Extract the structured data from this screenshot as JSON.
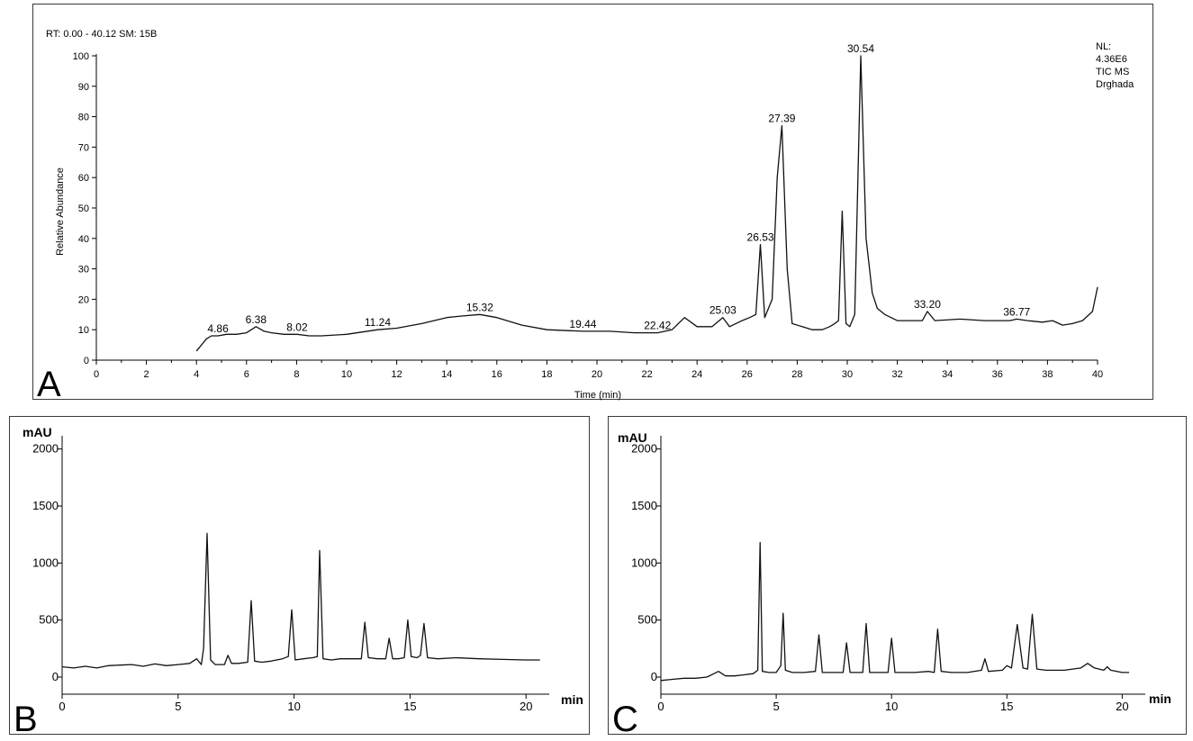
{
  "chart_data": [
    {
      "panel": "A",
      "type": "line",
      "header": "RT: 0.00 - 40.12  SM: 15B",
      "info_lines": [
        "NL:",
        "4.36E6",
        "TIC  MS",
        "Drghada"
      ],
      "xlabel": "Time (min)",
      "ylabel": "Relative Abundance",
      "xlim": [
        0,
        40
      ],
      "ylim": [
        0,
        100
      ],
      "x_ticks": [
        0,
        2,
        4,
        6,
        8,
        10,
        12,
        14,
        16,
        18,
        20,
        22,
        24,
        26,
        28,
        30,
        32,
        34,
        36,
        38,
        40
      ],
      "y_ticks": [
        0,
        10,
        20,
        30,
        40,
        50,
        60,
        70,
        80,
        90,
        100
      ],
      "series": [
        {
          "x": [
            4.0,
            4.2,
            4.4,
            4.6,
            4.86,
            5.2,
            5.6,
            6.0,
            6.38,
            6.7,
            7.0,
            7.5,
            8.02,
            8.5,
            9.0,
            10.0,
            11.24,
            12.0,
            13.0,
            14.0,
            14.6,
            15.32,
            16.0,
            17.0,
            18.0,
            19.44,
            20.5,
            21.5,
            22.42,
            23.0,
            23.5,
            24.0,
            24.6,
            25.03,
            25.3,
            25.8,
            26.1,
            26.35,
            26.53,
            26.7,
            27.0,
            27.2,
            27.39,
            27.6,
            27.8,
            28.2,
            28.6,
            29.0,
            29.3,
            29.5,
            29.65,
            29.8,
            29.95,
            30.1,
            30.3,
            30.54,
            30.75,
            31.0,
            31.2,
            31.5,
            32.0,
            32.5,
            33.0,
            33.2,
            33.5,
            34.5,
            35.5,
            36.5,
            36.77,
            37.2,
            37.8,
            38.2,
            38.6,
            39.0,
            39.4,
            39.8,
            40.0
          ],
          "y": [
            3,
            5,
            7,
            8,
            8,
            8.5,
            8.5,
            9,
            11,
            9.5,
            9,
            8.5,
            8.5,
            8,
            8,
            8.5,
            10,
            10.5,
            12,
            14,
            14.5,
            15,
            14,
            11.5,
            10,
            9.5,
            9.5,
            9,
            9,
            10,
            14,
            11,
            11,
            14,
            11,
            13,
            14,
            15,
            38,
            14,
            20,
            60,
            77,
            30,
            12,
            11,
            10,
            10,
            11,
            12,
            13,
            49,
            12,
            11,
            15,
            100,
            40,
            22,
            17,
            15,
            13,
            13,
            13,
            16,
            13,
            13.5,
            13,
            13,
            13.5,
            13,
            12.5,
            13,
            11.5,
            12,
            13,
            16,
            24
          ]
        }
      ],
      "peak_labels": [
        {
          "x": 4.86,
          "y": 8,
          "text": "4.86"
        },
        {
          "x": 6.38,
          "y": 11,
          "text": "6.38"
        },
        {
          "x": 8.02,
          "y": 8.5,
          "text": "8.02"
        },
        {
          "x": 11.24,
          "y": 10,
          "text": "11.24"
        },
        {
          "x": 15.32,
          "y": 15,
          "text": "15.32"
        },
        {
          "x": 19.44,
          "y": 9.5,
          "text": "19.44"
        },
        {
          "x": 22.42,
          "y": 9,
          "text": "22.42"
        },
        {
          "x": 25.03,
          "y": 14,
          "text": "25.03"
        },
        {
          "x": 26.53,
          "y": 38,
          "text": "26.53"
        },
        {
          "x": 27.39,
          "y": 77,
          "text": "27.39"
        },
        {
          "x": 30.54,
          "y": 100,
          "text": "30.54"
        },
        {
          "x": 33.2,
          "y": 16,
          "text": "33.20"
        },
        {
          "x": 36.77,
          "y": 13.5,
          "text": "36.77"
        }
      ]
    },
    {
      "panel": "B",
      "type": "line",
      "ylabel": "mAU",
      "xlabel": "min",
      "xlim": [
        0,
        21
      ],
      "ylim": [
        -150,
        2100
      ],
      "x_ticks": [
        0,
        5,
        10,
        15,
        20
      ],
      "y_ticks": [
        0,
        500,
        1000,
        1500,
        2000
      ],
      "series": [
        {
          "x": [
            0.0,
            0.5,
            1.0,
            1.5,
            2.0,
            2.5,
            3.0,
            3.5,
            4.0,
            4.5,
            5.0,
            5.5,
            5.8,
            6.0,
            6.1,
            6.25,
            6.4,
            6.6,
            7.0,
            7.15,
            7.3,
            7.6,
            8.0,
            8.15,
            8.3,
            8.6,
            9.0,
            9.5,
            9.75,
            9.9,
            10.05,
            10.4,
            10.8,
            11.0,
            11.1,
            11.25,
            11.6,
            12.0,
            12.5,
            12.9,
            13.05,
            13.2,
            13.6,
            13.95,
            14.1,
            14.25,
            14.5,
            14.75,
            14.9,
            15.05,
            15.3,
            15.45,
            15.6,
            15.75,
            16.2,
            17.0,
            18.0,
            19.0,
            20.0,
            20.6
          ],
          "y": [
            90,
            80,
            95,
            80,
            100,
            105,
            110,
            95,
            115,
            100,
            110,
            120,
            160,
            110,
            250,
            1260,
            150,
            110,
            110,
            190,
            120,
            120,
            130,
            670,
            140,
            130,
            140,
            160,
            180,
            590,
            150,
            160,
            170,
            180,
            1110,
            160,
            150,
            160,
            160,
            160,
            480,
            170,
            160,
            160,
            340,
            160,
            160,
            170,
            500,
            180,
            170,
            190,
            470,
            170,
            160,
            170,
            160,
            155,
            150,
            150
          ]
        }
      ]
    },
    {
      "panel": "C",
      "type": "line",
      "ylabel": "mAU",
      "xlabel": "min",
      "xlim": [
        0,
        21
      ],
      "ylim": [
        -150,
        2100
      ],
      "x_ticks": [
        0,
        5,
        10,
        15,
        20
      ],
      "y_ticks": [
        0,
        500,
        1000,
        1500,
        2000
      ],
      "series": [
        {
          "x": [
            0.0,
            0.5,
            1.0,
            1.5,
            2.0,
            2.3,
            2.5,
            2.8,
            3.2,
            3.6,
            4.0,
            4.2,
            4.3,
            4.4,
            4.7,
            5.0,
            5.2,
            5.3,
            5.4,
            5.7,
            6.2,
            6.7,
            6.85,
            7.0,
            7.5,
            7.9,
            8.05,
            8.2,
            8.5,
            8.75,
            8.9,
            9.05,
            9.4,
            9.85,
            10.0,
            10.15,
            10.5,
            11.0,
            11.6,
            11.85,
            12.0,
            12.15,
            12.6,
            13.3,
            13.9,
            14.05,
            14.2,
            14.8,
            15.0,
            15.2,
            15.45,
            15.7,
            15.9,
            16.1,
            16.3,
            16.7,
            17.5,
            18.2,
            18.5,
            18.8,
            19.2,
            19.35,
            19.5,
            20.0,
            20.3
          ],
          "y": [
            -30,
            -20,
            -10,
            -10,
            0,
            30,
            50,
            10,
            10,
            20,
            30,
            60,
            1180,
            50,
            40,
            40,
            100,
            560,
            60,
            40,
            40,
            50,
            370,
            40,
            40,
            40,
            300,
            40,
            40,
            40,
            470,
            40,
            40,
            40,
            340,
            40,
            40,
            40,
            50,
            40,
            420,
            50,
            40,
            40,
            60,
            160,
            50,
            60,
            100,
            80,
            460,
            80,
            70,
            550,
            70,
            60,
            60,
            80,
            120,
            80,
            60,
            90,
            60,
            40,
            40
          ]
        }
      ]
    }
  ],
  "panel_letters": {
    "a": "A",
    "b": "B",
    "c": "C"
  }
}
